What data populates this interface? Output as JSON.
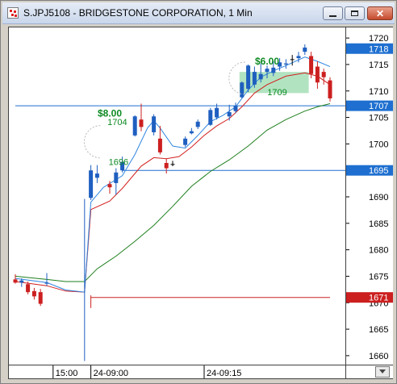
{
  "window": {
    "title": "S.JPJ5108 - BRIDGESTONE CORPORATION, 1 Min",
    "icon": "chart-app-icon",
    "buttons": [
      "minimize-icon",
      "maximize-icon",
      "close-icon"
    ]
  },
  "colors": {
    "up": "#1f5fc0",
    "down": "#cc1f1f",
    "neutral": "#000000",
    "ma_fast": "#2f86e0",
    "ma_mid": "#d21f1f",
    "ma_slow": "#1e7f1e",
    "hline": "#1e6fd0",
    "bar_line": "#cc2222",
    "marker_label": "#0d8a22",
    "highlight_fill": "#9fdcb1"
  },
  "chart_data": {
    "type": "candlestick",
    "ylim": [
      1658,
      1722
    ],
    "yticks": [
      1660,
      1665,
      1670,
      1675,
      1680,
      1685,
      1690,
      1695,
      1700,
      1705,
      1710,
      1715,
      1720
    ],
    "xlabels": [
      {
        "label": "15:00",
        "index": 6
      },
      {
        "label": "24-09:00",
        "index": 12
      },
      {
        "label": "24-09:15",
        "index": 30
      }
    ],
    "candles": [
      {
        "i": 0,
        "o": 1674.4,
        "h": 1675.4,
        "l": 1673.6,
        "c": 1673.8
      },
      {
        "i": 1,
        "o": 1673.8,
        "h": 1674.6,
        "l": 1673.0,
        "c": 1674.2
      },
      {
        "i": 2,
        "o": 1673.5,
        "h": 1674.0,
        "l": 1671.6,
        "c": 1672.0
      },
      {
        "i": 3,
        "o": 1672.2,
        "h": 1672.8,
        "l": 1670.6,
        "c": 1671.2
      },
      {
        "i": 4,
        "o": 1672.0,
        "h": 1672.6,
        "l": 1669.4,
        "c": 1669.8
      },
      {
        "i": 5,
        "o": 1673.6,
        "h": 1675.6,
        "l": 1673.2,
        "c": 1673.8
      },
      {
        "i": 12,
        "o": 1689.8,
        "h": 1696.0,
        "l": 1689.4,
        "c": 1695.0
      },
      {
        "i": 13,
        "o": 1693.6,
        "h": 1696.0,
        "l": 1692.6,
        "c": 1694.4
      },
      {
        "i": 15,
        "o": 1692.4,
        "h": 1693.0,
        "l": 1690.6,
        "c": 1691.8
      },
      {
        "i": 16,
        "o": 1692.6,
        "h": 1695.4,
        "l": 1690.4,
        "c": 1694.6
      },
      {
        "i": 17,
        "o": 1695.0,
        "h": 1697.6,
        "l": 1694.6,
        "c": 1696.6
      },
      {
        "i": 19,
        "o": 1701.6,
        "h": 1705.4,
        "l": 1701.4,
        "c": 1705.2
      },
      {
        "i": 20,
        "o": 1704.6,
        "h": 1707.6,
        "l": 1702.4,
        "c": 1703.2
      },
      {
        "i": 22,
        "o": 1702.2,
        "h": 1705.6,
        "l": 1701.6,
        "c": 1705.2
      },
      {
        "i": 23,
        "o": 1701.0,
        "h": 1703.4,
        "l": 1698.0,
        "c": 1698.4
      },
      {
        "i": 24,
        "o": 1696.4,
        "h": 1697.2,
        "l": 1694.4,
        "c": 1695.4
      },
      {
        "i": 25,
        "o": 1696.2,
        "h": 1696.8,
        "l": 1695.8,
        "c": 1696.2
      },
      {
        "i": 27,
        "o": 1699.8,
        "h": 1701.4,
        "l": 1699.4,
        "c": 1701.0
      },
      {
        "i": 28,
        "o": 1702.0,
        "h": 1703.0,
        "l": 1701.8,
        "c": 1702.4
      },
      {
        "i": 29,
        "o": 1703.2,
        "h": 1704.6,
        "l": 1702.8,
        "c": 1704.2
      },
      {
        "i": 31,
        "o": 1703.6,
        "h": 1706.8,
        "l": 1703.4,
        "c": 1706.4
      },
      {
        "i": 32,
        "o": 1705.0,
        "h": 1707.6,
        "l": 1704.6,
        "c": 1706.8
      },
      {
        "i": 34,
        "o": 1705.2,
        "h": 1707.4,
        "l": 1704.4,
        "c": 1706.0
      },
      {
        "i": 35,
        "o": 1706.2,
        "h": 1707.8,
        "l": 1705.8,
        "c": 1707.2
      },
      {
        "i": 36,
        "o": 1708.8,
        "h": 1711.8,
        "l": 1708.6,
        "c": 1711.6
      },
      {
        "i": 37,
        "o": 1710.4,
        "h": 1715.0,
        "l": 1709.8,
        "c": 1714.8
      },
      {
        "i": 38,
        "o": 1711.2,
        "h": 1714.6,
        "l": 1710.6,
        "c": 1713.6
      },
      {
        "i": 39,
        "o": 1712.2,
        "h": 1715.2,
        "l": 1711.6,
        "c": 1713.2
      },
      {
        "i": 40,
        "o": 1713.6,
        "h": 1714.8,
        "l": 1712.4,
        "c": 1714.2
      },
      {
        "i": 41,
        "o": 1713.4,
        "h": 1715.6,
        "l": 1712.8,
        "c": 1714.4
      },
      {
        "i": 42,
        "o": 1714.6,
        "h": 1716.2,
        "l": 1713.8,
        "c": 1715.4
      },
      {
        "i": 43,
        "o": 1715.0,
        "h": 1716.0,
        "l": 1714.2,
        "c": 1715.2
      },
      {
        "i": 44,
        "o": 1716.0,
        "h": 1716.8,
        "l": 1714.8,
        "c": 1716.0
      },
      {
        "i": 45,
        "o": 1716.2,
        "h": 1717.4,
        "l": 1715.4,
        "c": 1716.6
      },
      {
        "i": 46,
        "o": 1717.4,
        "h": 1718.8,
        "l": 1716.8,
        "c": 1718.2
      },
      {
        "i": 47,
        "o": 1716.6,
        "h": 1717.4,
        "l": 1712.4,
        "c": 1713.2
      },
      {
        "i": 48,
        "o": 1714.6,
        "h": 1715.6,
        "l": 1710.4,
        "c": 1711.6
      },
      {
        "i": 49,
        "o": 1713.6,
        "h": 1714.2,
        "l": 1711.2,
        "c": 1712.6
      },
      {
        "i": 50,
        "o": 1712.0,
        "h": 1712.6,
        "l": 1708.0,
        "c": 1708.6
      }
    ],
    "ma_fast": [
      [
        0,
        1674.6
      ],
      [
        5,
        1673.8
      ],
      [
        8,
        1672.4
      ],
      [
        11,
        1672.0
      ],
      [
        12,
        1689.0
      ],
      [
        14,
        1691.8
      ],
      [
        17,
        1694.0
      ],
      [
        19,
        1698.0
      ],
      [
        21,
        1703.0
      ],
      [
        22,
        1704.4
      ],
      [
        23,
        1703.0
      ],
      [
        25,
        1699.6
      ],
      [
        27,
        1699.2
      ],
      [
        29,
        1701.6
      ],
      [
        31,
        1704.2
      ],
      [
        33,
        1705.4
      ],
      [
        35,
        1707.0
      ],
      [
        37,
        1710.2
      ],
      [
        39,
        1712.6
      ],
      [
        41,
        1713.8
      ],
      [
        43,
        1714.8
      ],
      [
        46,
        1716.4
      ],
      [
        48,
        1715.6
      ],
      [
        50,
        1714.6
      ]
    ],
    "ma_mid": [
      [
        0,
        1674.0
      ],
      [
        5,
        1673.2
      ],
      [
        8,
        1672.2
      ],
      [
        11,
        1672.0
      ],
      [
        12,
        1687.6
      ],
      [
        15,
        1689.2
      ],
      [
        17,
        1691.6
      ],
      [
        20,
        1695.8
      ],
      [
        22,
        1697.4
      ],
      [
        24,
        1697.2
      ],
      [
        26,
        1697.6
      ],
      [
        28,
        1699.4
      ],
      [
        30,
        1701.6
      ],
      [
        32,
        1703.4
      ],
      [
        34,
        1704.8
      ],
      [
        36,
        1707.0
      ],
      [
        38,
        1709.6
      ],
      [
        40,
        1711.2
      ],
      [
        43,
        1712.8
      ],
      [
        46,
        1713.4
      ],
      [
        48,
        1712.8
      ],
      [
        50,
        1711.2
      ]
    ],
    "ma_slow": [
      [
        0,
        1675.0
      ],
      [
        5,
        1674.4
      ],
      [
        8,
        1674.0
      ],
      [
        11,
        1674.0
      ],
      [
        13,
        1676.4
      ],
      [
        16,
        1678.8
      ],
      [
        19,
        1681.6
      ],
      [
        22,
        1684.6
      ],
      [
        25,
        1688.2
      ],
      [
        28,
        1692.0
      ],
      [
        31,
        1694.8
      ],
      [
        34,
        1697.0
      ],
      [
        37,
        1699.6
      ],
      [
        40,
        1702.6
      ],
      [
        43,
        1704.6
      ],
      [
        46,
        1706.2
      ],
      [
        48,
        1707.0
      ],
      [
        50,
        1707.6
      ]
    ],
    "spike": {
      "i": 11,
      "top": 1689.6,
      "bottom": 1659.0
    },
    "hlines": [
      {
        "name": "hline-1707",
        "y": 1707.2,
        "x0": 0
      },
      {
        "name": "hline-1695",
        "y": 1695.0,
        "x0": 17
      }
    ],
    "red_line": {
      "y": 1671,
      "x0": 12,
      "tick_top": 1671.4,
      "tick_bottom": 1669.0
    },
    "price_tags": [
      {
        "text": "1718",
        "y": 1718
      },
      {
        "text": "1707",
        "y": 1707.2
      },
      {
        "text": "1695",
        "y": 1695.0
      },
      {
        "text": "1671",
        "y": 1671.0
      }
    ],
    "markers": [
      {
        "name": "marker-1704",
        "amount": "$8.00",
        "price": "1704",
        "amount_i": 15,
        "amount_y": 1705.2,
        "price_i": 16.2,
        "price_y": 1703.6,
        "circle_i": 13,
        "circle_y": 1700.4
      },
      {
        "name": "marker-1696",
        "price": "1696",
        "price_i": 16.4,
        "price_y": 1696.0
      },
      {
        "name": "marker-1709",
        "amount": "$6.00",
        "price": "1709",
        "amount_i": 40,
        "amount_y": 1715.0,
        "price_i": 41.6,
        "price_y": 1709.2,
        "circle_i": 36,
        "circle_y": 1712.4,
        "box": {
          "i0": 36,
          "i1": 47,
          "y0": 1713.6,
          "y1": 1709.6
        }
      }
    ]
  }
}
